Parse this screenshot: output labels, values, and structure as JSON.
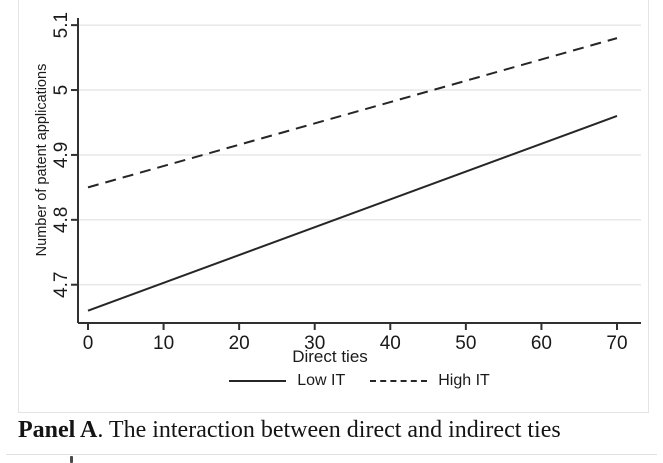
{
  "figure": {
    "caption_bold": "Panel A",
    "caption_rest": ". The interaction between direct and indirect ties"
  },
  "chart_data": {
    "type": "line",
    "title": "",
    "xlabel": "Direct ties",
    "ylabel": "Number of patent applications",
    "xlim": [
      0,
      70
    ],
    "ylim": [
      4.641,
      5.111
    ],
    "x_ticks": [
      0,
      10,
      20,
      30,
      40,
      50,
      60,
      70
    ],
    "y_ticks": [
      {
        "value": 4.7,
        "label": "4.7"
      },
      {
        "value": 4.8,
        "label": "4.8"
      },
      {
        "value": 4.9,
        "label": "4.9"
      },
      {
        "value": 5.0,
        "label": "5"
      },
      {
        "value": 5.1,
        "label": "5.1"
      }
    ],
    "grid": "horizontal",
    "legend_position": "bottom",
    "series": [
      {
        "name": "Low IT",
        "style": "solid",
        "points": [
          [
            0,
            4.66
          ],
          [
            70,
            4.96
          ]
        ]
      },
      {
        "name": "High IT",
        "style": "dashed",
        "points": [
          [
            0,
            4.85
          ],
          [
            70,
            5.08
          ]
        ]
      }
    ],
    "colors": {
      "line": "#262626",
      "axis": "#303030",
      "grid": "#e9e9e9",
      "text": "#1a1a1a"
    }
  }
}
